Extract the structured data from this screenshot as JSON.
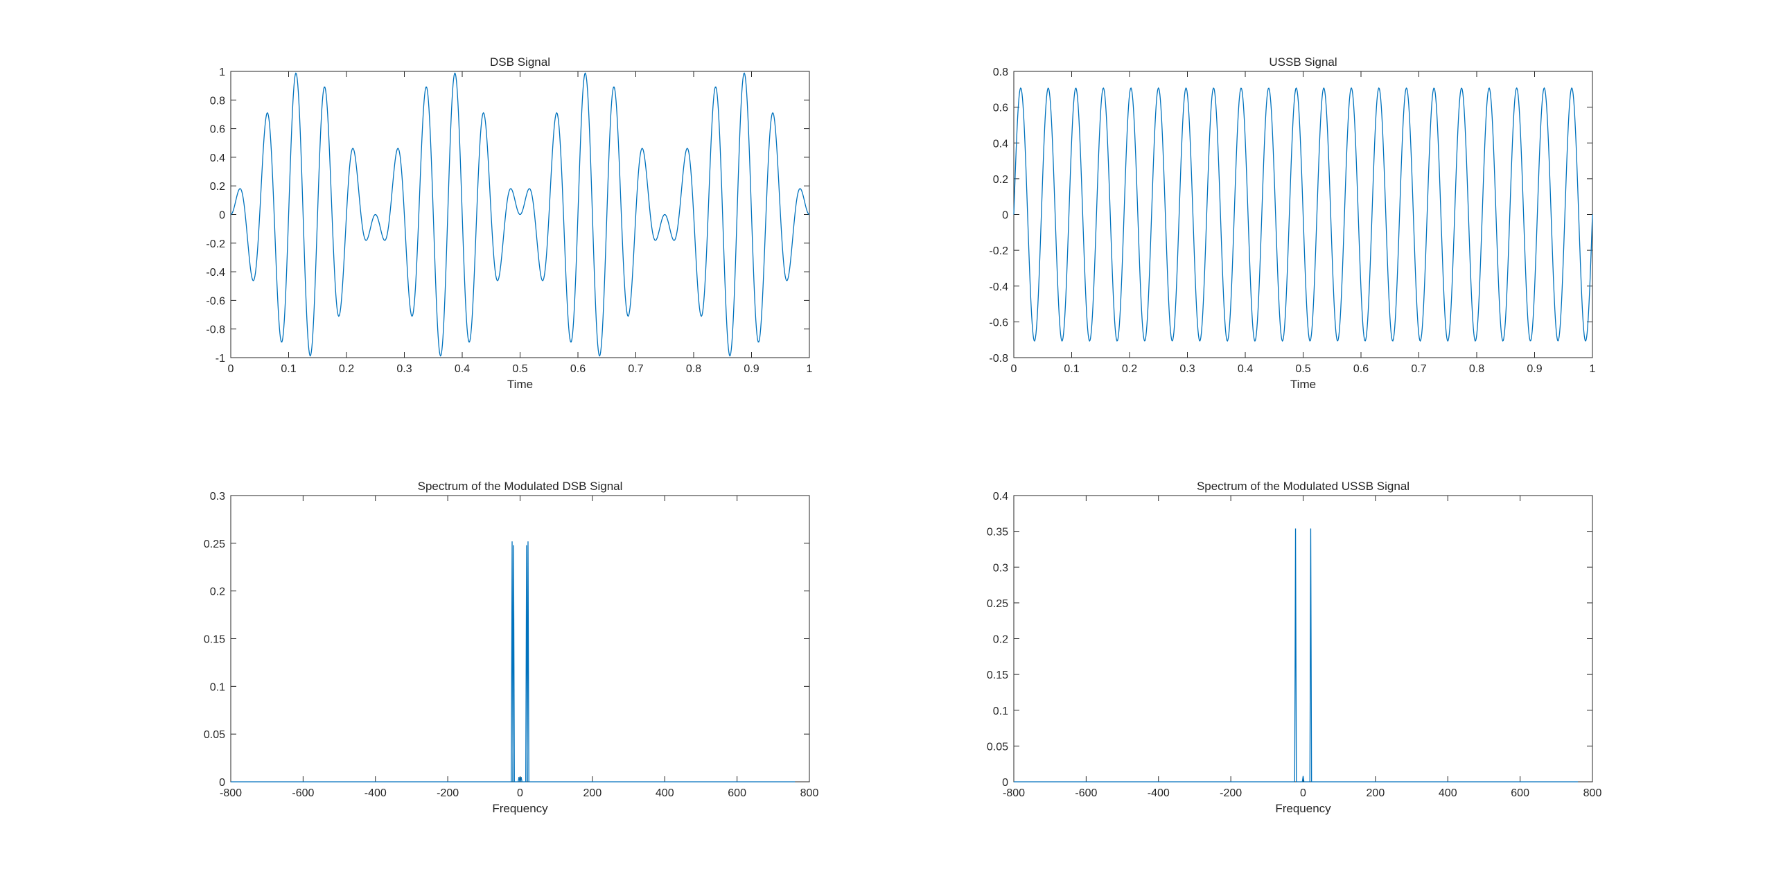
{
  "chart_data": [
    {
      "type": "line",
      "title": "DSB Signal",
      "xlabel": "Time",
      "ylabel": "",
      "xlim": [
        0,
        1
      ],
      "ylim": [
        -1,
        1
      ],
      "xticks": [
        0,
        0.1,
        0.2,
        0.3,
        0.4,
        0.5,
        0.6,
        0.7,
        0.8,
        0.9,
        1
      ],
      "xtick_labels": [
        "0",
        "0.1",
        "0.2",
        "0.3",
        "0.4",
        "0.5",
        "0.6",
        "0.7",
        "0.8",
        "0.9",
        "1"
      ],
      "yticks": [
        -1,
        -0.8,
        -0.6,
        -0.4,
        -0.2,
        0,
        0.2,
        0.4,
        0.6,
        0.8,
        1
      ],
      "ytick_labels": [
        "-1",
        "-0.8",
        "-0.6",
        "-0.4",
        "-0.2",
        "0",
        "0.2",
        "0.4",
        "0.6",
        "0.8",
        "1"
      ],
      "grid": false,
      "color": "#0072BD",
      "signal": {
        "kind": "dsb",
        "message_freq": 2,
        "carrier_freq": 20,
        "amplitude": 1,
        "samples": 1200
      }
    },
    {
      "type": "line",
      "title": "USSB Signal",
      "xlabel": "Time",
      "ylabel": "",
      "xlim": [
        0,
        1
      ],
      "ylim": [
        -0.8,
        0.8
      ],
      "xticks": [
        0,
        0.1,
        0.2,
        0.3,
        0.4,
        0.5,
        0.6,
        0.7,
        0.8,
        0.9,
        1
      ],
      "xtick_labels": [
        "0",
        "0.1",
        "0.2",
        "0.3",
        "0.4",
        "0.5",
        "0.6",
        "0.7",
        "0.8",
        "0.9",
        "1"
      ],
      "yticks": [
        -0.8,
        -0.6,
        -0.4,
        -0.2,
        0,
        0.2,
        0.4,
        0.6,
        0.8
      ],
      "ytick_labels": [
        "-0.8",
        "-0.6",
        "-0.4",
        "-0.2",
        "0",
        "0.2",
        "0.4",
        "0.6",
        "0.8"
      ],
      "grid": false,
      "color": "#0072BD",
      "signal": {
        "kind": "ussb",
        "tone_freq": 21,
        "amplitude": 0.707,
        "samples": 1200
      }
    },
    {
      "type": "line",
      "title": "Spectrum of the Modulated DSB Signal",
      "xlabel": "Frequency",
      "ylabel": "",
      "xlim": [
        -800,
        800
      ],
      "ylim": [
        0,
        0.3
      ],
      "xticks": [
        -800,
        -600,
        -400,
        -200,
        0,
        200,
        400,
        600,
        800
      ],
      "xtick_labels": [
        "-800",
        "-600",
        "-400",
        "-200",
        "0",
        "200",
        "400",
        "600",
        "800"
      ],
      "yticks": [
        0,
        0.05,
        0.1,
        0.15,
        0.2,
        0.25,
        0.3
      ],
      "ytick_labels": [
        "0",
        "0.05",
        "0.1",
        "0.15",
        "0.2",
        "0.25",
        "0.3"
      ],
      "grid": false,
      "color": "#0072BD",
      "x_range": [
        -800,
        760
      ],
      "peaks": [
        {
          "x": -22,
          "y": 0.252
        },
        {
          "x": -18,
          "y": 0.248
        },
        {
          "x": 18,
          "y": 0.248
        },
        {
          "x": 22,
          "y": 0.252
        },
        {
          "x": -3,
          "y": 0.005
        },
        {
          "x": 3,
          "y": 0.005
        }
      ]
    },
    {
      "type": "line",
      "title": "Spectrum of the Modulated USSB Signal",
      "xlabel": "Frequency",
      "ylabel": "",
      "xlim": [
        -800,
        800
      ],
      "ylim": [
        0,
        0.4
      ],
      "xticks": [
        -800,
        -600,
        -400,
        -200,
        0,
        200,
        400,
        600,
        800
      ],
      "xtick_labels": [
        "-800",
        "-600",
        "-400",
        "-200",
        "0",
        "200",
        "400",
        "600",
        "800"
      ],
      "yticks": [
        0,
        0.05,
        0.1,
        0.15,
        0.2,
        0.25,
        0.3,
        0.35,
        0.4
      ],
      "ytick_labels": [
        "0",
        "0.05",
        "0.1",
        "0.15",
        "0.2",
        "0.25",
        "0.3",
        "0.35",
        "0.4"
      ],
      "grid": false,
      "color": "#0072BD",
      "x_range": [
        -800,
        760
      ],
      "peaks": [
        {
          "x": -21,
          "y": 0.354
        },
        {
          "x": 21,
          "y": 0.354
        },
        {
          "x": 0,
          "y": 0.008
        }
      ]
    }
  ]
}
